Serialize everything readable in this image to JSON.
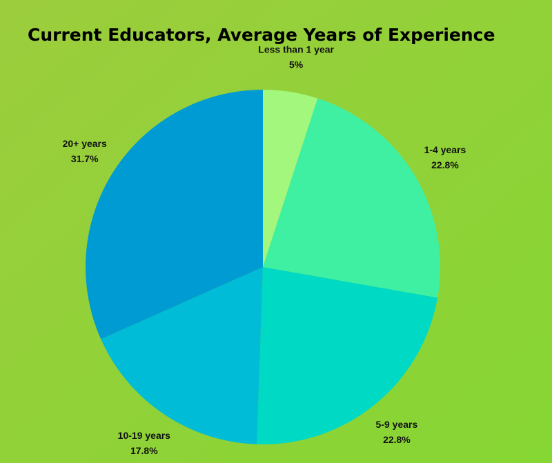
{
  "chart_data": {
    "type": "pie",
    "title": "Current Educators, Average Years of Experience",
    "categories": [
      "Less than 1 year",
      "1-4 years",
      "5-9 years",
      "10-19 years",
      "20+ years"
    ],
    "values": [
      5,
      22.8,
      22.8,
      17.8,
      31.7
    ],
    "value_labels": [
      "5%",
      "22.8%",
      "22.8%",
      "17.8%",
      "31.7%"
    ],
    "colors": [
      "#a3f77c",
      "#3ff0a2",
      "#00d9c4",
      "#00bcd6",
      "#009bd2"
    ]
  }
}
